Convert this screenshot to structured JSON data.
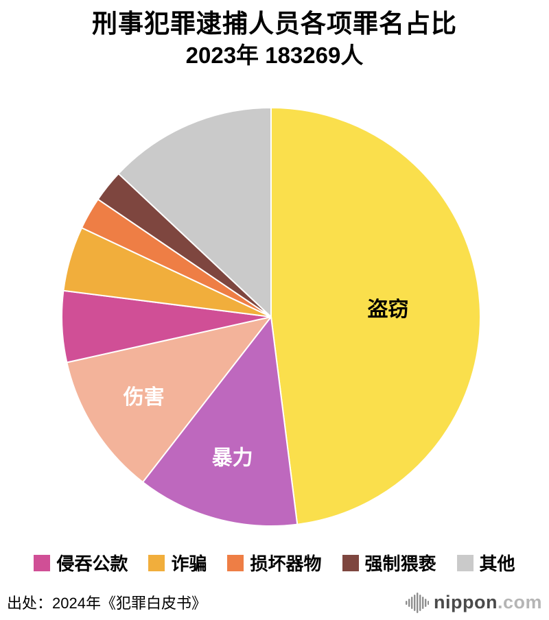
{
  "title": {
    "line1": "刑事犯罪逮捕人员各项罪名占比",
    "line2": "2023年 183269人"
  },
  "source": "出处：2024年《犯罪白皮书》",
  "logo": {
    "text": "nippon",
    "suffix": ".com"
  },
  "chart_data": {
    "type": "pie",
    "title": "刑事犯罪逮捕人员各项罪名占比 2023年 183269人",
    "total_persons": "183269",
    "year": "2023",
    "start_angle_deg": 0,
    "direction": "clockwise",
    "legend_position": "bottom",
    "slices": [
      {
        "key": "theft",
        "label": "盗窃",
        "value": 48.0,
        "color": "#FADF4C",
        "label_on_pie": true,
        "label_color": "#000000",
        "label_r": 0.56
      },
      {
        "key": "violence",
        "label": "暴力",
        "value": 12.5,
        "color": "#BE68BE",
        "label_on_pie": true,
        "label_color": "#FFFFFF",
        "label_r": 0.7
      },
      {
        "key": "injury",
        "label": "伤害",
        "value": 11.0,
        "color": "#F3B39A",
        "label_on_pie": true,
        "label_color": "#FFFFFF",
        "label_r": 0.72
      },
      {
        "key": "embezzlement",
        "label": "侵吞公款",
        "value": 5.5,
        "color": "#D04F96",
        "label_on_pie": false
      },
      {
        "key": "fraud",
        "label": "诈骗",
        "value": 5.0,
        "color": "#F1AE3C",
        "label_on_pie": false
      },
      {
        "key": "property-damage",
        "label": "损坏器物",
        "value": 2.5,
        "color": "#EE7E45",
        "label_on_pie": false
      },
      {
        "key": "indecency",
        "label": "强制猥亵",
        "value": 2.5,
        "color": "#7E463F",
        "label_on_pie": false
      },
      {
        "key": "other",
        "label": "其他",
        "value": 13.0,
        "color": "#CACACA",
        "label_on_pie": false
      }
    ]
  }
}
